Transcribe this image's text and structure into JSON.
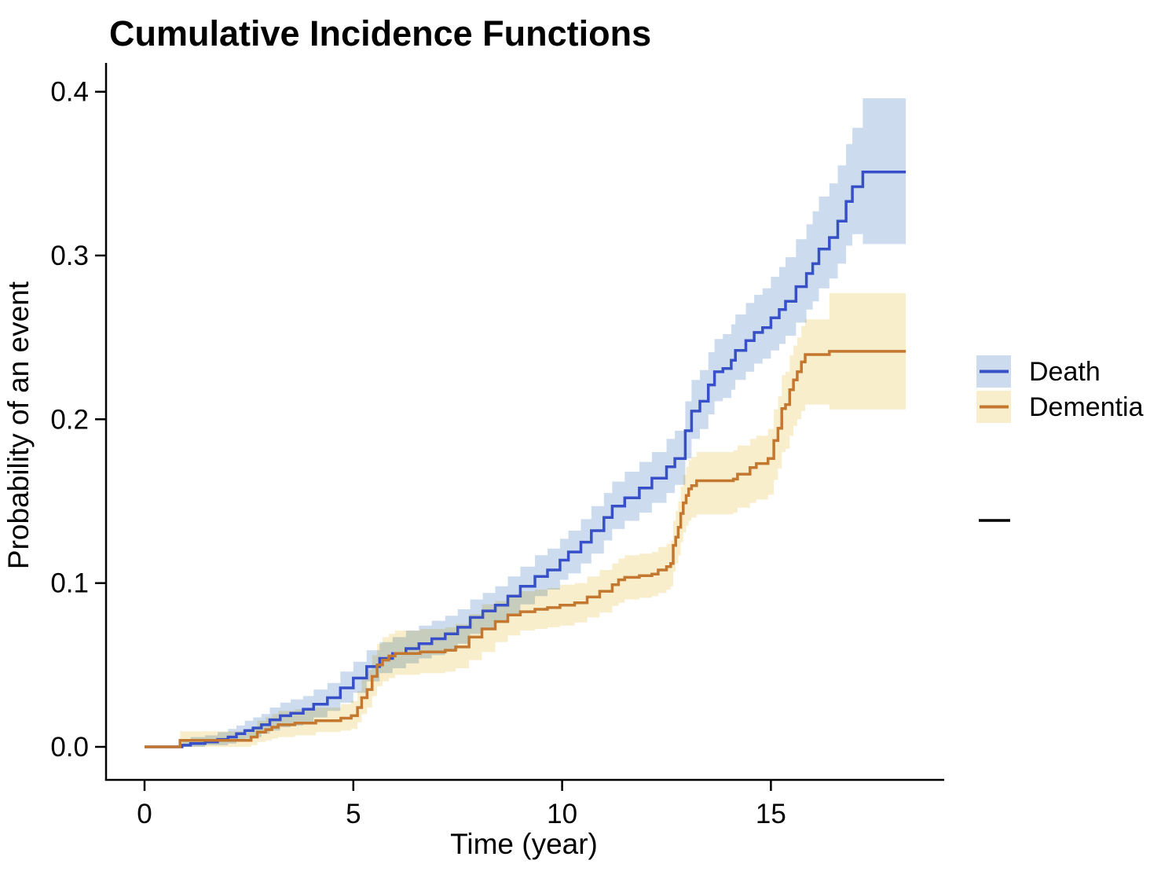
{
  "page": {
    "background": "#ffffff"
  },
  "chart_data": {
    "type": "line",
    "variant": "step_cumulative_incidence_with_confidence_bands",
    "title": "Cumulative Incidence Functions",
    "xlabel": "Time (year)",
    "ylabel": "Probability of an event",
    "x_ticks": [
      "0",
      "5",
      "10",
      "15"
    ],
    "y_ticks": [
      "0.0",
      "0.1",
      "0.2",
      "0.3",
      "0.4"
    ],
    "x_tick_values": [
      0,
      5,
      10,
      15
    ],
    "y_tick_values": [
      0.0,
      0.1,
      0.2,
      0.3,
      0.4
    ],
    "x_range": [
      -0.92,
      19.2
    ],
    "y_range": [
      -0.02,
      0.435
    ],
    "grid": false,
    "legend_position": "right",
    "axis_color": "#000000",
    "t_end": 18.23,
    "series": [
      {
        "name": "Death",
        "line_color": "#3750c8",
        "band_color": "#ccdcee",
        "points": [
          [
            0,
            0,
            0,
            0
          ],
          [
            0.9,
            0.001,
            0,
            0.004
          ],
          [
            1.1,
            0.002,
            0,
            0.006
          ],
          [
            1.45,
            0.003,
            0.001,
            0.007
          ],
          [
            1.75,
            0.0045,
            0.001,
            0.009
          ],
          [
            2,
            0.006,
            0.002,
            0.011
          ],
          [
            2.2,
            0.008,
            0.004,
            0.013
          ],
          [
            2.4,
            0.01,
            0.005,
            0.016
          ],
          [
            2.6,
            0.0115,
            0.006,
            0.018
          ],
          [
            2.8,
            0.0135,
            0.008,
            0.02
          ],
          [
            3,
            0.0165,
            0.01,
            0.024
          ],
          [
            3.25,
            0.019,
            0.012,
            0.027
          ],
          [
            3.5,
            0.0205,
            0.013,
            0.029
          ],
          [
            3.8,
            0.023,
            0.015,
            0.031
          ],
          [
            4.05,
            0.026,
            0.018,
            0.035
          ],
          [
            4.38,
            0.03,
            0.022,
            0.039
          ],
          [
            4.69,
            0.036,
            0.027,
            0.046
          ],
          [
            5,
            0.042,
            0.033,
            0.052
          ],
          [
            5.32,
            0.049,
            0.04,
            0.059
          ],
          [
            5.63,
            0.054,
            0.045,
            0.064
          ],
          [
            5.94,
            0.057,
            0.048,
            0.067
          ],
          [
            6.26,
            0.06,
            0.051,
            0.071
          ],
          [
            6.57,
            0.063,
            0.054,
            0.074
          ],
          [
            6.88,
            0.066,
            0.056,
            0.077
          ],
          [
            7.2,
            0.069,
            0.059,
            0.08
          ],
          [
            7.5,
            0.073,
            0.063,
            0.084
          ],
          [
            7.8,
            0.079,
            0.069,
            0.09
          ],
          [
            8.1,
            0.083,
            0.072,
            0.094
          ],
          [
            8.4,
            0.0865,
            0.076,
            0.098
          ],
          [
            8.7,
            0.092,
            0.081,
            0.104
          ],
          [
            9,
            0.098,
            0.087,
            0.11
          ],
          [
            9.35,
            0.104,
            0.092,
            0.117
          ],
          [
            9.65,
            0.108,
            0.096,
            0.121
          ],
          [
            9.95,
            0.114,
            0.102,
            0.127
          ],
          [
            10.15,
            0.119,
            0.106,
            0.132
          ],
          [
            10.45,
            0.125,
            0.112,
            0.139
          ],
          [
            10.7,
            0.132,
            0.118,
            0.147
          ],
          [
            11,
            0.14,
            0.126,
            0.155
          ],
          [
            11.2,
            0.147,
            0.133,
            0.162
          ],
          [
            11.5,
            0.152,
            0.138,
            0.168
          ],
          [
            11.85,
            0.158,
            0.143,
            0.174
          ],
          [
            12.15,
            0.164,
            0.149,
            0.18
          ],
          [
            12.5,
            0.171,
            0.155,
            0.188
          ],
          [
            12.7,
            0.176,
            0.16,
            0.193
          ],
          [
            12.95,
            0.193,
            0.176,
            0.211
          ],
          [
            13.1,
            0.205,
            0.188,
            0.224
          ],
          [
            13.3,
            0.211,
            0.194,
            0.23
          ],
          [
            13.5,
            0.221,
            0.203,
            0.241
          ],
          [
            13.65,
            0.229,
            0.211,
            0.249
          ],
          [
            13.85,
            0.231,
            0.213,
            0.252
          ],
          [
            14.05,
            0.236,
            0.218,
            0.258
          ],
          [
            14.15,
            0.242,
            0.224,
            0.264
          ],
          [
            14.4,
            0.248,
            0.229,
            0.271
          ],
          [
            14.6,
            0.253,
            0.234,
            0.276
          ],
          [
            14.8,
            0.256,
            0.237,
            0.28
          ],
          [
            15,
            0.262,
            0.242,
            0.287
          ],
          [
            15.2,
            0.267,
            0.246,
            0.293
          ],
          [
            15.35,
            0.272,
            0.251,
            0.299
          ],
          [
            15.6,
            0.281,
            0.259,
            0.31
          ],
          [
            15.85,
            0.289,
            0.267,
            0.319
          ],
          [
            16,
            0.295,
            0.272,
            0.327
          ],
          [
            16.15,
            0.304,
            0.28,
            0.336
          ],
          [
            16.4,
            0.311,
            0.286,
            0.344
          ],
          [
            16.6,
            0.321,
            0.295,
            0.355
          ],
          [
            16.8,
            0.333,
            0.306,
            0.368
          ],
          [
            16.95,
            0.342,
            0.313,
            0.378
          ],
          [
            17.2,
            0.351,
            0.307,
            0.396
          ],
          [
            18.23,
            0.351,
            0.307,
            0.396
          ]
        ]
      },
      {
        "name": "Dementia",
        "line_color": "#c3772f",
        "band_color": "#f9eecb",
        "points": [
          [
            0,
            0,
            0,
            0
          ],
          [
            0.85,
            0.004,
            0,
            0.0095
          ],
          [
            2.55,
            0.006,
            0.001,
            0.012
          ],
          [
            2.7,
            0.009,
            0.003,
            0.016
          ],
          [
            2.9,
            0.0105,
            0.004,
            0.018
          ],
          [
            3.05,
            0.012,
            0.005,
            0.02
          ],
          [
            3.2,
            0.0135,
            0.006,
            0.022
          ],
          [
            3.6,
            0.0145,
            0.007,
            0.023
          ],
          [
            4.1,
            0.016,
            0.009,
            0.024
          ],
          [
            4.7,
            0.0175,
            0.01,
            0.026
          ],
          [
            4.95,
            0.019,
            0.011,
            0.028
          ],
          [
            5.1,
            0.024,
            0.015,
            0.034
          ],
          [
            5.2,
            0.03,
            0.02,
            0.041
          ],
          [
            5.33,
            0.035,
            0.024,
            0.047
          ],
          [
            5.45,
            0.043,
            0.031,
            0.056
          ],
          [
            5.57,
            0.05,
            0.037,
            0.063
          ],
          [
            5.7,
            0.053,
            0.04,
            0.067
          ],
          [
            5.85,
            0.0555,
            0.042,
            0.069
          ],
          [
            6,
            0.057,
            0.044,
            0.071
          ],
          [
            6.6,
            0.058,
            0.045,
            0.072
          ],
          [
            7.2,
            0.059,
            0.046,
            0.073
          ],
          [
            7.45,
            0.061,
            0.048,
            0.075
          ],
          [
            7.77,
            0.067,
            0.053,
            0.081
          ],
          [
            8.08,
            0.072,
            0.058,
            0.087
          ],
          [
            8.4,
            0.0765,
            0.064,
            0.089
          ],
          [
            8.7,
            0.0805,
            0.068,
            0.093
          ],
          [
            9,
            0.0825,
            0.071,
            0.095
          ],
          [
            9.35,
            0.084,
            0.072,
            0.096
          ],
          [
            9.65,
            0.085,
            0.073,
            0.097
          ],
          [
            9.95,
            0.0865,
            0.074,
            0.099
          ],
          [
            10.3,
            0.088,
            0.076,
            0.1
          ],
          [
            10.6,
            0.0915,
            0.079,
            0.104
          ],
          [
            10.9,
            0.095,
            0.082,
            0.108
          ],
          [
            11.2,
            0.099,
            0.086,
            0.112
          ],
          [
            11.35,
            0.102,
            0.088,
            0.115
          ],
          [
            11.5,
            0.1035,
            0.09,
            0.117
          ],
          [
            11.85,
            0.1045,
            0.091,
            0.118
          ],
          [
            12.15,
            0.1055,
            0.092,
            0.119
          ],
          [
            12.3,
            0.108,
            0.094,
            0.122
          ],
          [
            12.5,
            0.11,
            0.096,
            0.124
          ],
          [
            12.6,
            0.112,
            0.098,
            0.126
          ],
          [
            12.66,
            0.123,
            0.107,
            0.138
          ],
          [
            12.72,
            0.128,
            0.112,
            0.144
          ],
          [
            12.78,
            0.134,
            0.117,
            0.15
          ],
          [
            12.84,
            0.1425,
            0.125,
            0.159
          ],
          [
            12.9,
            0.149,
            0.131,
            0.166
          ],
          [
            12.97,
            0.1535,
            0.135,
            0.171
          ],
          [
            13.03,
            0.1575,
            0.138,
            0.175
          ],
          [
            13.1,
            0.1595,
            0.14,
            0.177
          ],
          [
            13.22,
            0.1625,
            0.142,
            0.18
          ],
          [
            14.1,
            0.1635,
            0.143,
            0.181
          ],
          [
            14.2,
            0.1665,
            0.146,
            0.184
          ],
          [
            14.5,
            0.1705,
            0.149,
            0.188
          ],
          [
            14.65,
            0.173,
            0.151,
            0.19
          ],
          [
            14.93,
            0.176,
            0.154,
            0.194
          ],
          [
            15.07,
            0.187,
            0.163,
            0.206
          ],
          [
            15.17,
            0.1945,
            0.17,
            0.214
          ],
          [
            15.26,
            0.2065,
            0.18,
            0.227
          ],
          [
            15.35,
            0.209,
            0.182,
            0.229
          ],
          [
            15.45,
            0.218,
            0.19,
            0.239
          ],
          [
            15.54,
            0.224,
            0.196,
            0.245
          ],
          [
            15.63,
            0.229,
            0.2,
            0.25
          ],
          [
            15.73,
            0.235,
            0.205,
            0.257
          ],
          [
            15.82,
            0.2395,
            0.209,
            0.261
          ],
          [
            16.4,
            0.2415,
            0.206,
            0.277
          ],
          [
            18.23,
            0.2415,
            0.206,
            0.277
          ]
        ]
      }
    ],
    "secondary_legend": {
      "label": "",
      "line_color": "#000000"
    }
  }
}
